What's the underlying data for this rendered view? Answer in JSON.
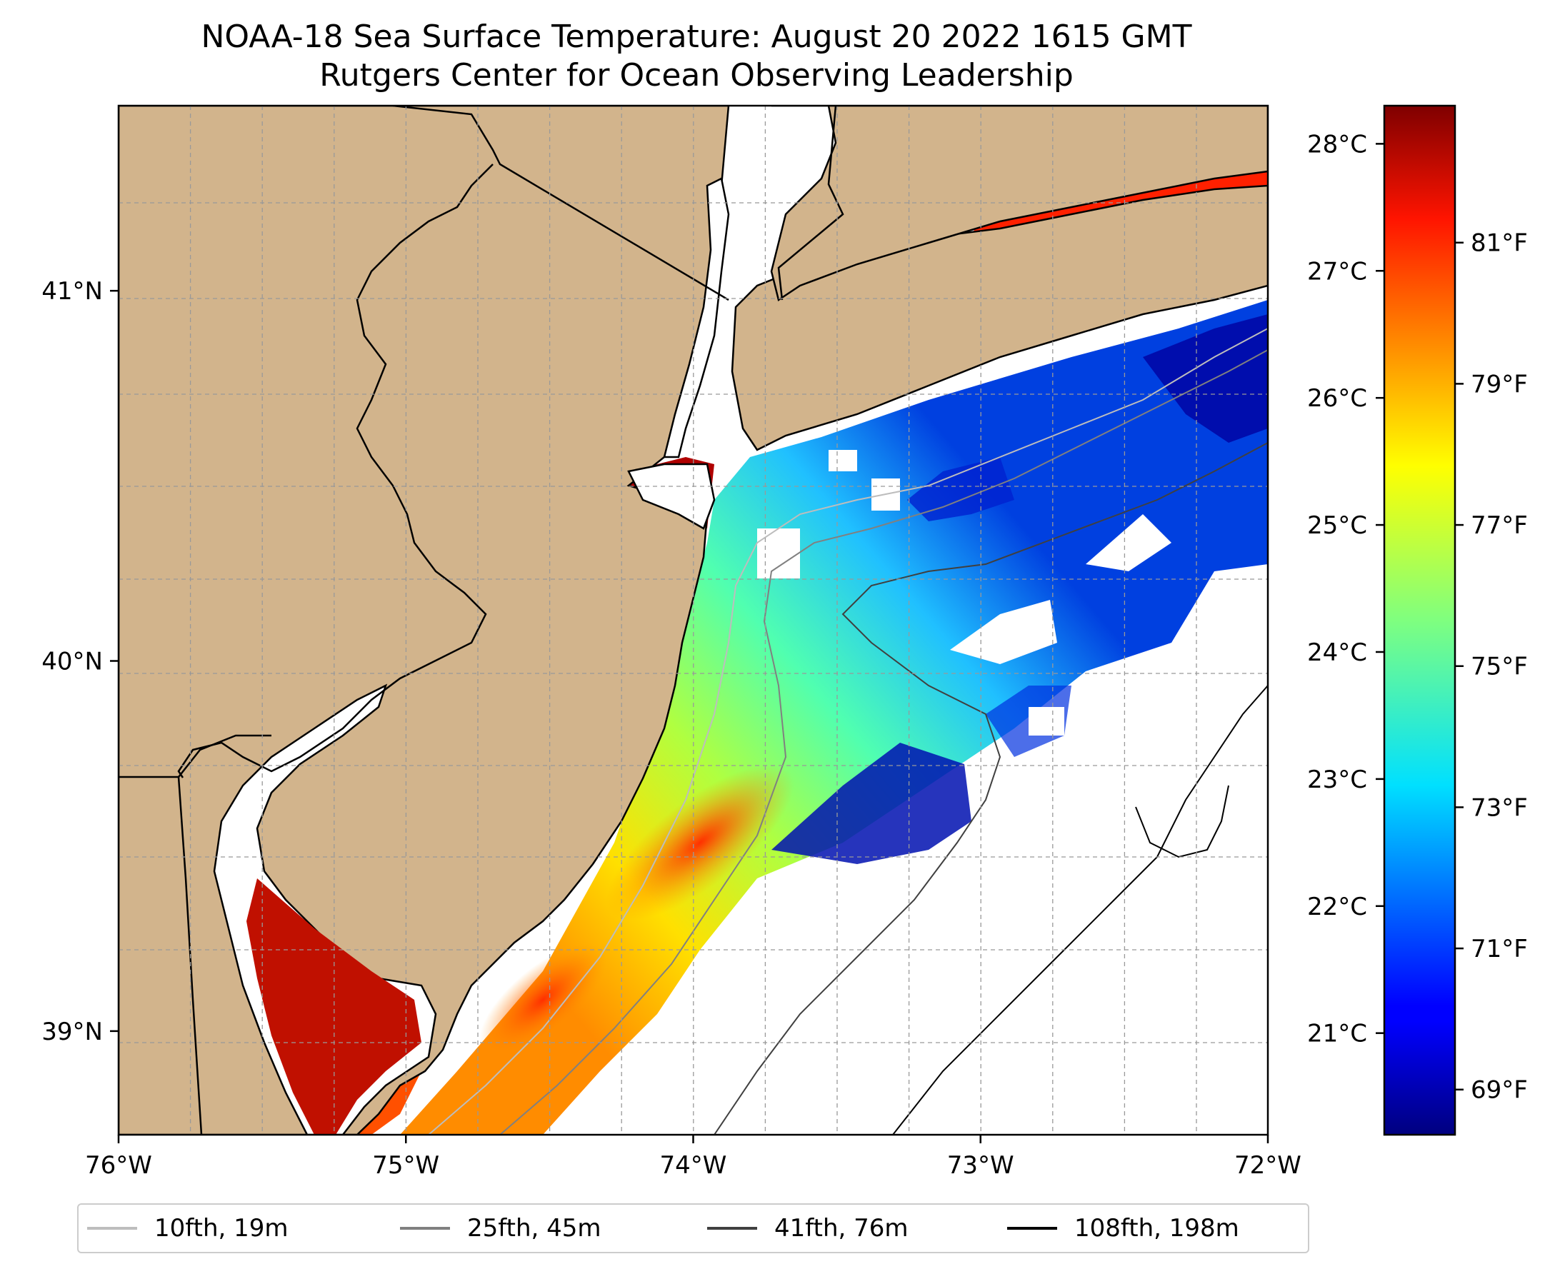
{
  "title": {
    "line1": "NOAA-18 Sea Surface Temperature: August 20 2022 1615 GMT",
    "line2": "Rutgers Center for Ocean Observing Leadership"
  },
  "map": {
    "lon_range": [
      -76,
      -72
    ],
    "lat_range": [
      38.72,
      41.5
    ],
    "lon_ticks": [
      -76,
      -75,
      -74,
      -73,
      -72
    ],
    "lon_tick_labels": [
      "76°W",
      "75°W",
      "74°W",
      "73°W",
      "72°W"
    ],
    "lat_ticks": [
      41,
      40,
      39
    ],
    "lat_tick_labels": [
      "41°N",
      "40°N",
      "39°N"
    ],
    "land_color": "#d2b48c",
    "water_color": "#ffffff",
    "gridlines": "dashed grey"
  },
  "colorbar": {
    "colormap": "jet",
    "celsius_range": [
      20.2,
      28.3
    ],
    "celsius_ticks": [
      21,
      22,
      23,
      24,
      25,
      26,
      27,
      28
    ],
    "celsius_tick_labels": [
      "21°C",
      "22°C",
      "23°C",
      "24°C",
      "25°C",
      "26°C",
      "27°C",
      "28°C"
    ],
    "fahrenheit_ticks": [
      69,
      71,
      73,
      75,
      77,
      79,
      81
    ],
    "fahrenheit_tick_labels": [
      "69°F",
      "71°F",
      "73°F",
      "75°F",
      "77°F",
      "79°F",
      "81°F"
    ]
  },
  "legend": {
    "items": [
      {
        "label": "10fth, 19m",
        "color": "#bdbdbd"
      },
      {
        "label": "25fth, 45m",
        "color": "#808080"
      },
      {
        "label": "41fth, 76m",
        "color": "#404040"
      },
      {
        "label": "108fth, 198m",
        "color": "#000000"
      }
    ]
  }
}
